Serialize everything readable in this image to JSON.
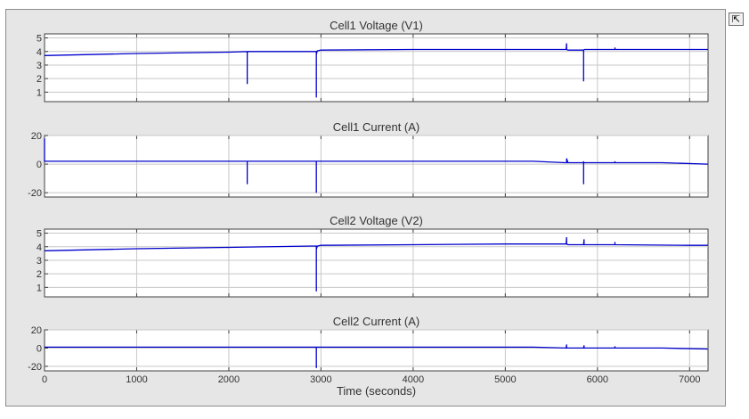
{
  "figure": {
    "dock_icon": "undock-arrow-icon",
    "dock_glyph": "⇱",
    "background": "#e6e6e6",
    "line_color": "#0000cc"
  },
  "chart_data": [
    {
      "type": "line",
      "title": "Cell1 Voltage (V1)",
      "xlabel": "",
      "ylabel": "",
      "xlim": [
        0,
        7200
      ],
      "ylim": [
        0.3,
        5.3
      ],
      "yticks": [
        1,
        2,
        3,
        4,
        5
      ],
      "xticks": [
        0,
        1000,
        2000,
        3000,
        4000,
        5000,
        6000,
        7000
      ],
      "show_xtick_labels": false,
      "grid": true,
      "series": [
        {
          "x": [
            0,
            1000,
            2000,
            2200,
            2200,
            2200,
            2205,
            2400,
            2920,
            2950,
            2950,
            2950,
            2960,
            3000,
            4000,
            5000,
            5660,
            5665,
            5665,
            5680,
            5850,
            5850,
            5850,
            5860,
            6000,
            6190,
            6190,
            6190,
            7000,
            7200
          ],
          "y": [
            3.7,
            3.85,
            3.95,
            4.0,
            1.6,
            3.9,
            4.0,
            4.0,
            4.0,
            4.0,
            0.6,
            3.8,
            4.05,
            4.1,
            4.15,
            4.15,
            4.15,
            4.6,
            4.15,
            4.1,
            4.1,
            1.8,
            4.1,
            4.15,
            4.15,
            4.15,
            4.3,
            4.15,
            4.15,
            4.15
          ]
        }
      ]
    },
    {
      "type": "line",
      "title": "Cell1 Current (A)",
      "xlabel": "",
      "ylabel": "",
      "xlim": [
        0,
        7200
      ],
      "ylim": [
        -23,
        20
      ],
      "yticks": [
        -20,
        0,
        20
      ],
      "xticks": [
        0,
        1000,
        2000,
        3000,
        4000,
        5000,
        6000,
        7000
      ],
      "show_xtick_labels": false,
      "grid": true,
      "series": [
        {
          "x": [
            0,
            0,
            10,
            2200,
            2200,
            2200,
            2950,
            2950,
            2950,
            5300,
            5650,
            5665,
            5665,
            5680,
            5850,
            5850,
            5850,
            5850,
            5860,
            6190,
            6190,
            6190,
            6700,
            7200
          ],
          "y": [
            18,
            2,
            2,
            2,
            -14,
            2,
            2,
            -20,
            2,
            2,
            1,
            1,
            4,
            1,
            1,
            -14,
            2,
            1,
            1,
            1,
            2,
            1,
            1,
            0
          ],
          "note": ""
        }
      ]
    },
    {
      "type": "line",
      "title": "Cell2 Voltage (V2)",
      "xlabel": "",
      "ylabel": "",
      "xlim": [
        0,
        7200
      ],
      "ylim": [
        0.3,
        5.3
      ],
      "yticks": [
        1,
        2,
        3,
        4,
        5
      ],
      "xticks": [
        0,
        1000,
        2000,
        3000,
        4000,
        5000,
        6000,
        7000
      ],
      "show_xtick_labels": false,
      "grid": true,
      "series": [
        {
          "x": [
            0,
            1000,
            2000,
            2900,
            2950,
            2950,
            2950,
            2960,
            3000,
            4000,
            5000,
            5660,
            5665,
            5665,
            5680,
            5850,
            5855,
            5855,
            5870,
            6190,
            6190,
            6190,
            7000,
            7200
          ],
          "y": [
            3.7,
            3.85,
            3.95,
            4.05,
            4.05,
            0.7,
            3.8,
            4.05,
            4.1,
            4.15,
            4.2,
            4.2,
            4.7,
            4.2,
            4.15,
            4.15,
            4.55,
            4.15,
            4.15,
            4.15,
            4.35,
            4.15,
            4.1,
            4.1
          ]
        }
      ]
    },
    {
      "type": "line",
      "title": "Cell2 Current (A)",
      "xlabel": "Time (seconds)",
      "ylabel": "",
      "xlim": [
        0,
        7200
      ],
      "ylim": [
        -25,
        20
      ],
      "yticks": [
        -20,
        0,
        20
      ],
      "xticks": [
        0,
        1000,
        2000,
        3000,
        4000,
        5000,
        6000,
        7000
      ],
      "show_xtick_labels": true,
      "grid": true,
      "series": [
        {
          "x": [
            0,
            2950,
            2950,
            2950,
            5300,
            5660,
            5665,
            5665,
            5680,
            5850,
            5855,
            5855,
            5870,
            6190,
            6190,
            6190,
            6700,
            7200
          ],
          "y": [
            1,
            1,
            -22,
            1,
            1,
            0,
            4,
            0,
            0,
            0,
            3,
            0,
            0,
            0,
            2,
            0,
            0,
            -1
          ]
        }
      ]
    }
  ]
}
